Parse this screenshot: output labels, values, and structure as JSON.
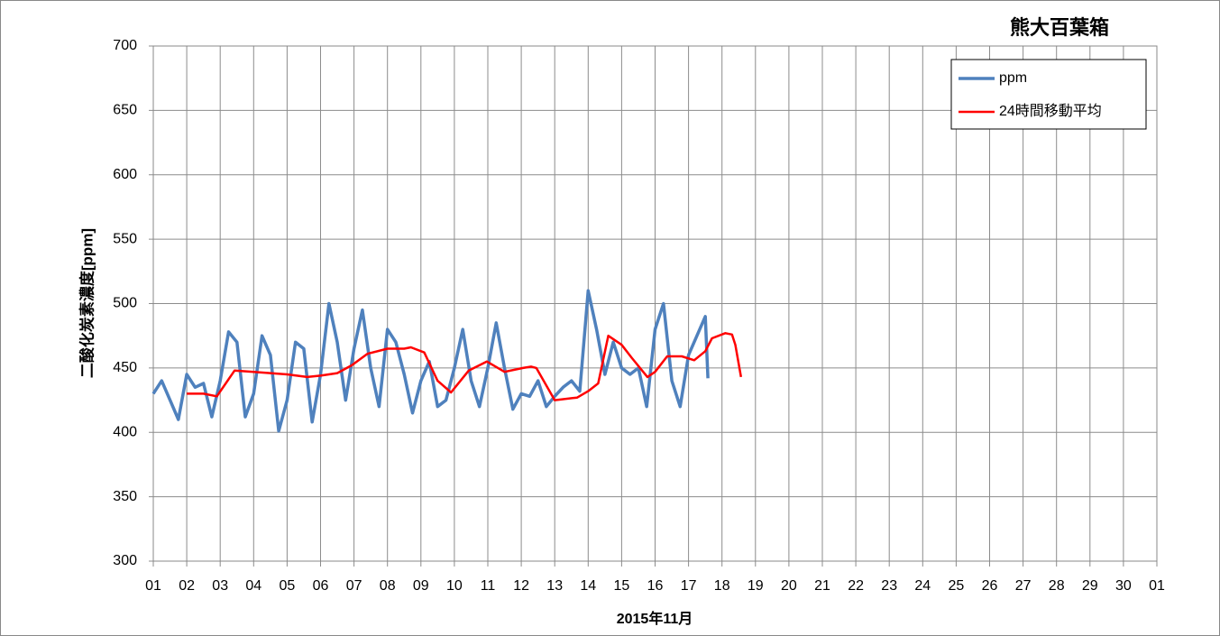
{
  "chart_data": {
    "type": "line",
    "title": "熊大百葉箱",
    "y_label": "二酸化炭素濃度[ppm]",
    "x_label": "2015年11月",
    "xlim": [
      0,
      30
    ],
    "ylim": [
      300,
      700
    ],
    "yticks": [
      300,
      350,
      400,
      450,
      500,
      550,
      600,
      650,
      700
    ],
    "xticks": [
      {
        "value": 0,
        "label": "01"
      },
      {
        "value": 1,
        "label": "02"
      },
      {
        "value": 2,
        "label": "03"
      },
      {
        "value": 3,
        "label": "04"
      },
      {
        "value": 4,
        "label": "05"
      },
      {
        "value": 5,
        "label": "06"
      },
      {
        "value": 6,
        "label": "07"
      },
      {
        "value": 7,
        "label": "08"
      },
      {
        "value": 8,
        "label": "09"
      },
      {
        "value": 9,
        "label": "10"
      },
      {
        "value": 10,
        "label": "11"
      },
      {
        "value": 11,
        "label": "12"
      },
      {
        "value": 12,
        "label": "13"
      },
      {
        "value": 13,
        "label": "14"
      },
      {
        "value": 14,
        "label": "15"
      },
      {
        "value": 15,
        "label": "16"
      },
      {
        "value": 16,
        "label": "17"
      },
      {
        "value": 17,
        "label": "18"
      },
      {
        "value": 18,
        "label": "19"
      },
      {
        "value": 19,
        "label": "20"
      },
      {
        "value": 20,
        "label": "21"
      },
      {
        "value": 21,
        "label": "22"
      },
      {
        "value": 22,
        "label": "23"
      },
      {
        "value": 23,
        "label": "24"
      },
      {
        "value": 24,
        "label": "25"
      },
      {
        "value": 25,
        "label": "26"
      },
      {
        "value": 26,
        "label": "27"
      },
      {
        "value": 27,
        "label": "28"
      },
      {
        "value": 28,
        "label": "29"
      },
      {
        "value": 29,
        "label": "30"
      },
      {
        "value": 30,
        "label": "01"
      }
    ],
    "grid": true,
    "legend": "upper right",
    "series": [
      {
        "name": "ppm",
        "color": "#4f81bd",
        "width": 3.5,
        "x": [
          0,
          0.25,
          0.5,
          0.75,
          1,
          1.25,
          1.5,
          1.75,
          2,
          2.25,
          2.5,
          2.75,
          3,
          3.25,
          3.5,
          3.75,
          4,
          4.25,
          4.5,
          4.75,
          5,
          5.25,
          5.5,
          5.75,
          6,
          6.25,
          6.5,
          6.75,
          7,
          7.25,
          7.5,
          7.75,
          8,
          8.25,
          8.5,
          8.75,
          9,
          9.25,
          9.5,
          9.75,
          10,
          10.25,
          10.5,
          10.75,
          11,
          11.25,
          11.5,
          11.75,
          12,
          12.25,
          12.5,
          12.75,
          13,
          13.25,
          13.5,
          13.75,
          14,
          14.25,
          14.5,
          14.75,
          15,
          15.25,
          15.5,
          15.75,
          16,
          16.25,
          16.5,
          16.58
        ],
        "values": [
          430,
          440,
          425,
          410,
          445,
          435,
          438,
          412,
          440,
          478,
          470,
          412,
          430,
          475,
          460,
          401,
          425,
          470,
          465,
          408,
          445,
          500,
          470,
          425,
          465,
          495,
          450,
          420,
          480,
          470,
          445,
          415,
          440,
          455,
          420,
          425,
          450,
          480,
          440,
          420,
          450,
          485,
          450,
          418,
          430,
          428,
          440,
          420,
          428,
          435,
          440,
          432,
          510,
          480,
          445,
          470,
          450,
          445,
          450,
          420,
          480,
          500,
          440,
          420,
          460,
          475,
          490,
          442
        ]
      },
      {
        "name": "24時間移動平均",
        "color": "#ff0000",
        "width": 2.5,
        "x": [
          1.0,
          1.5,
          1.9,
          2.43,
          3.0,
          3.5,
          4.0,
          4.6,
          5.0,
          5.5,
          5.93,
          6.4,
          7.0,
          7.5,
          7.7,
          8.1,
          8.5,
          8.9,
          9.43,
          9.97,
          10.5,
          11.05,
          11.3,
          11.45,
          12.0,
          12.67,
          13.0,
          13.3,
          13.6,
          14.0,
          14.3,
          14.77,
          15.0,
          15.36,
          15.8,
          16.17,
          16.5,
          16.7,
          17.1,
          17.3,
          17.4,
          17.57
        ],
        "values": [
          430,
          430,
          428,
          448,
          447,
          446,
          445,
          443,
          444,
          446,
          452,
          461,
          465,
          465,
          466,
          462,
          440,
          431,
          448,
          455,
          447,
          450,
          451,
          450,
          425,
          427,
          432,
          438,
          475,
          468,
          458,
          443,
          447,
          459,
          459,
          456,
          463,
          473,
          477,
          476,
          468,
          443
        ]
      }
    ]
  }
}
